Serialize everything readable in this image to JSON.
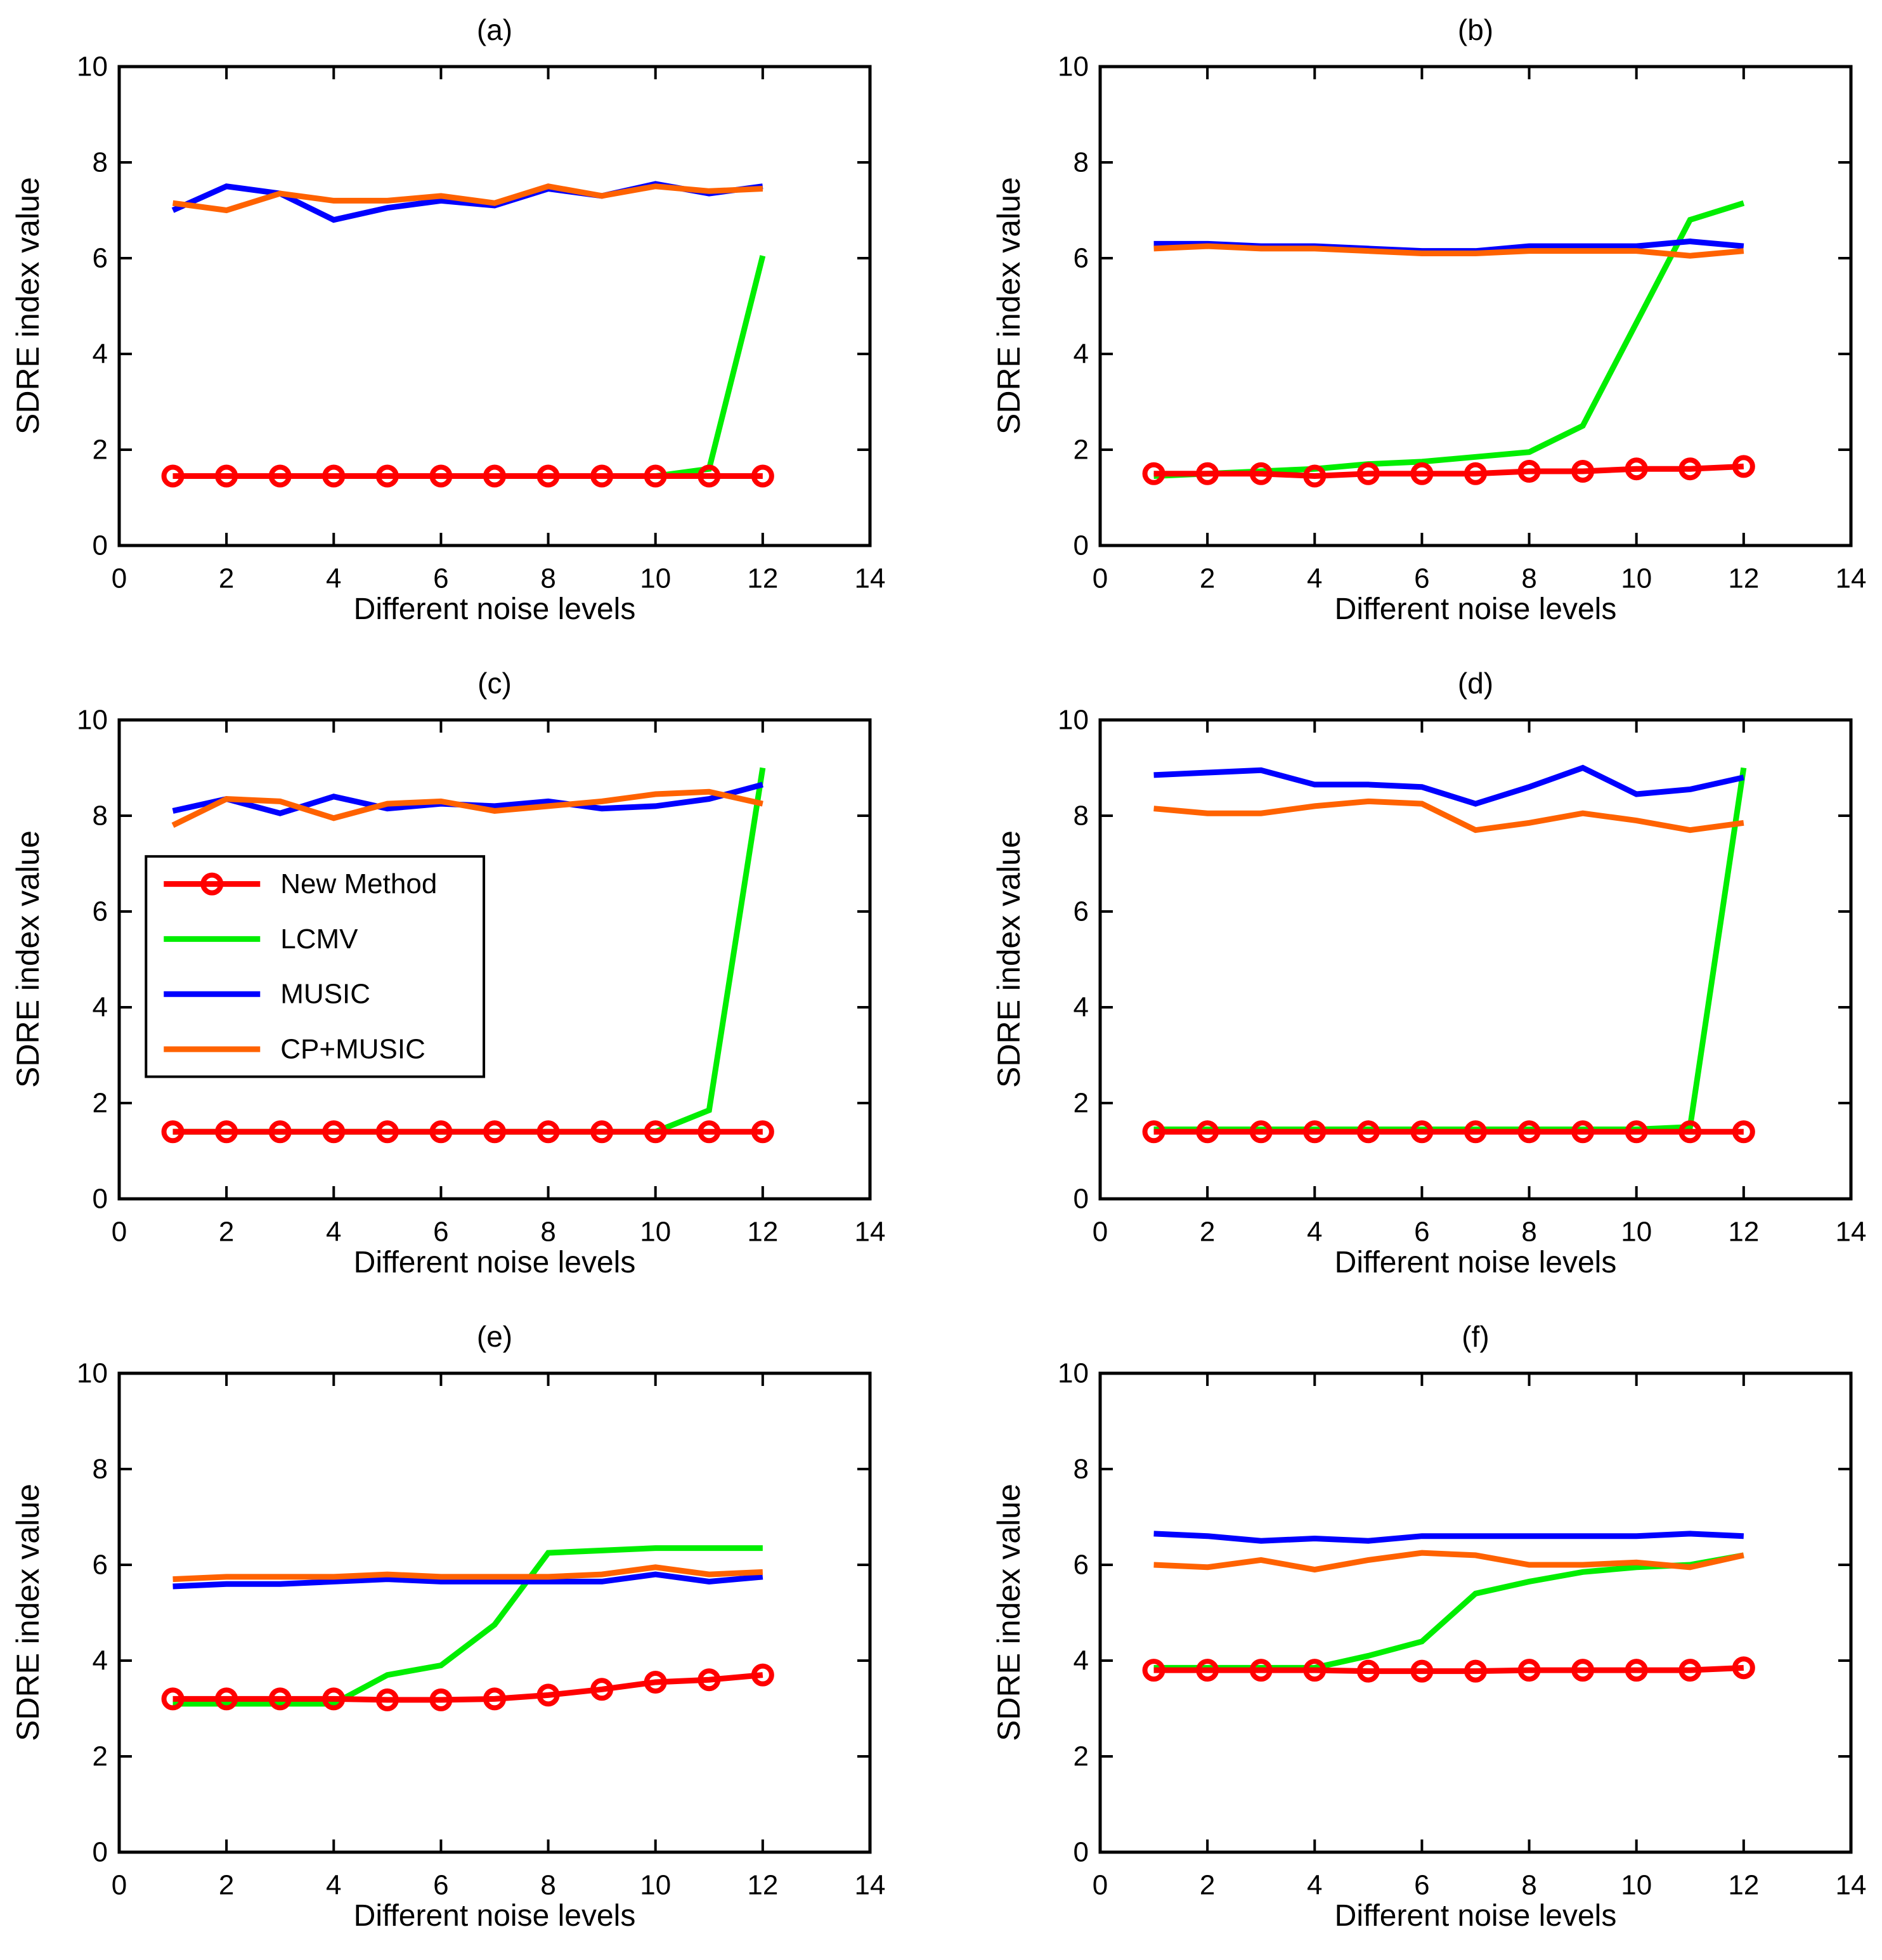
{
  "palette": {
    "red": "#ff0000",
    "green": "#00ee00",
    "blue": "#0000ff",
    "orange": "#ff6200",
    "axis_color": "#000000",
    "background": "#ffffff"
  },
  "chart_data": [
    {
      "id": "a",
      "type": "line",
      "title": "(a)",
      "xlabel": "Different noise levels",
      "ylabel": "SDRE index value",
      "xlim": [
        0,
        14
      ],
      "ylim": [
        0,
        10
      ],
      "xticks": [
        0,
        2,
        4,
        6,
        8,
        10,
        12,
        14
      ],
      "yticks": [
        0,
        2,
        4,
        6,
        8,
        10
      ],
      "grid": false,
      "x": [
        1,
        2,
        3,
        4,
        5,
        6,
        7,
        8,
        9,
        10,
        11,
        12
      ],
      "series": [
        {
          "name": "New Method",
          "color": "red",
          "marker": "circle",
          "values": [
            1.45,
            1.45,
            1.45,
            1.45,
            1.45,
            1.45,
            1.45,
            1.45,
            1.45,
            1.45,
            1.45,
            1.45
          ]
        },
        {
          "name": "LCMV",
          "color": "green",
          "marker": null,
          "values": [
            1.45,
            1.45,
            1.45,
            1.45,
            1.45,
            1.45,
            1.45,
            1.45,
            1.45,
            1.45,
            1.6,
            6.05
          ]
        },
        {
          "name": "MUSIC",
          "color": "blue",
          "marker": null,
          "values": [
            7.0,
            7.5,
            7.35,
            6.8,
            7.05,
            7.2,
            7.1,
            7.45,
            7.3,
            7.55,
            7.35,
            7.5
          ]
        },
        {
          "name": "CP+MUSIC",
          "color": "orange",
          "marker": null,
          "values": [
            7.15,
            7.0,
            7.35,
            7.2,
            7.2,
            7.3,
            7.15,
            7.5,
            7.3,
            7.5,
            7.4,
            7.45
          ]
        }
      ]
    },
    {
      "id": "b",
      "type": "line",
      "title": "(b)",
      "xlabel": "Different noise levels",
      "ylabel": "SDRE index value",
      "xlim": [
        0,
        14
      ],
      "ylim": [
        0,
        10
      ],
      "xticks": [
        0,
        2,
        4,
        6,
        8,
        10,
        12,
        14
      ],
      "yticks": [
        0,
        2,
        4,
        6,
        8,
        10
      ],
      "grid": false,
      "x": [
        1,
        2,
        3,
        4,
        5,
        6,
        7,
        8,
        9,
        10,
        11,
        12
      ],
      "series": [
        {
          "name": "New Method",
          "color": "red",
          "marker": "circle",
          "values": [
            1.5,
            1.5,
            1.5,
            1.45,
            1.5,
            1.5,
            1.5,
            1.55,
            1.55,
            1.6,
            1.6,
            1.65
          ]
        },
        {
          "name": "LCMV",
          "color": "green",
          "marker": null,
          "values": [
            1.45,
            1.5,
            1.55,
            1.6,
            1.7,
            1.75,
            1.85,
            1.95,
            2.5,
            4.65,
            6.8,
            7.15
          ]
        },
        {
          "name": "MUSIC",
          "color": "blue",
          "marker": null,
          "values": [
            6.3,
            6.3,
            6.25,
            6.25,
            6.2,
            6.15,
            6.15,
            6.25,
            6.25,
            6.25,
            6.35,
            6.25
          ]
        },
        {
          "name": "CP+MUSIC",
          "color": "orange",
          "marker": null,
          "values": [
            6.2,
            6.25,
            6.2,
            6.2,
            6.15,
            6.1,
            6.1,
            6.15,
            6.15,
            6.15,
            6.05,
            6.15
          ]
        }
      ]
    },
    {
      "id": "c",
      "type": "line",
      "title": "(c)",
      "xlabel": "Different noise levels",
      "ylabel": "SDRE index value",
      "xlim": [
        0,
        14
      ],
      "ylim": [
        0,
        10
      ],
      "xticks": [
        0,
        2,
        4,
        6,
        8,
        10,
        12,
        14
      ],
      "yticks": [
        0,
        2,
        4,
        6,
        8,
        10
      ],
      "grid": false,
      "x": [
        1,
        2,
        3,
        4,
        5,
        6,
        7,
        8,
        9,
        10,
        11,
        12
      ],
      "legend": {
        "visible": true,
        "position": "upper-left",
        "labels": [
          "New Method",
          "LCMV",
          "MUSIC",
          "CP+MUSIC"
        ],
        "box_data_coords": {
          "x0": 0.5,
          "x1": 6.8,
          "y0": 2.55,
          "y1": 7.15
        }
      },
      "series": [
        {
          "name": "New Method",
          "color": "red",
          "marker": "circle",
          "values": [
            1.4,
            1.4,
            1.4,
            1.4,
            1.4,
            1.4,
            1.4,
            1.4,
            1.4,
            1.4,
            1.4,
            1.4
          ]
        },
        {
          "name": "LCMV",
          "color": "green",
          "marker": null,
          "values": [
            1.4,
            1.4,
            1.4,
            1.4,
            1.4,
            1.4,
            1.4,
            1.4,
            1.4,
            1.4,
            1.85,
            9.0
          ]
        },
        {
          "name": "MUSIC",
          "color": "blue",
          "marker": null,
          "values": [
            8.1,
            8.35,
            8.05,
            8.4,
            8.15,
            8.25,
            8.2,
            8.3,
            8.15,
            8.2,
            8.35,
            8.65
          ]
        },
        {
          "name": "CP+MUSIC",
          "color": "orange",
          "marker": null,
          "values": [
            7.8,
            8.35,
            8.3,
            7.95,
            8.25,
            8.3,
            8.1,
            8.2,
            8.3,
            8.45,
            8.5,
            8.25
          ]
        }
      ]
    },
    {
      "id": "d",
      "type": "line",
      "title": "(d)",
      "xlabel": "Different noise levels",
      "ylabel": "SDRE index value",
      "xlim": [
        0,
        14
      ],
      "ylim": [
        0,
        10
      ],
      "xticks": [
        0,
        2,
        4,
        6,
        8,
        10,
        12,
        14
      ],
      "yticks": [
        0,
        2,
        4,
        6,
        8,
        10
      ],
      "grid": false,
      "x": [
        1,
        2,
        3,
        4,
        5,
        6,
        7,
        8,
        9,
        10,
        11,
        12
      ],
      "series": [
        {
          "name": "New Method",
          "color": "red",
          "marker": "circle",
          "values": [
            1.4,
            1.4,
            1.4,
            1.4,
            1.4,
            1.4,
            1.4,
            1.4,
            1.4,
            1.4,
            1.4,
            1.4
          ]
        },
        {
          "name": "LCMV",
          "color": "green",
          "marker": null,
          "values": [
            1.45,
            1.45,
            1.45,
            1.45,
            1.45,
            1.45,
            1.45,
            1.45,
            1.45,
            1.45,
            1.5,
            9.0
          ]
        },
        {
          "name": "MUSIC",
          "color": "blue",
          "marker": null,
          "values": [
            8.85,
            8.9,
            8.95,
            8.65,
            8.65,
            8.6,
            8.25,
            8.6,
            9.0,
            8.45,
            8.55,
            8.8
          ]
        },
        {
          "name": "CP+MUSIC",
          "color": "orange",
          "marker": null,
          "values": [
            8.15,
            8.05,
            8.05,
            8.2,
            8.3,
            8.25,
            7.7,
            7.85,
            8.05,
            7.9,
            7.7,
            7.85
          ]
        }
      ]
    },
    {
      "id": "e",
      "type": "line",
      "title": "(e)",
      "xlabel": "Different noise levels",
      "ylabel": "SDRE index value",
      "xlim": [
        0,
        14
      ],
      "ylim": [
        0,
        10
      ],
      "xticks": [
        0,
        2,
        4,
        6,
        8,
        10,
        12,
        14
      ],
      "yticks": [
        0,
        2,
        4,
        6,
        8,
        10
      ],
      "grid": false,
      "x": [
        1,
        2,
        3,
        4,
        5,
        6,
        7,
        8,
        9,
        10,
        11,
        12
      ],
      "series": [
        {
          "name": "New Method",
          "color": "red",
          "marker": "circle",
          "values": [
            3.2,
            3.2,
            3.2,
            3.2,
            3.18,
            3.18,
            3.2,
            3.28,
            3.4,
            3.55,
            3.6,
            3.7
          ]
        },
        {
          "name": "LCMV",
          "color": "green",
          "marker": null,
          "values": [
            3.1,
            3.1,
            3.1,
            3.1,
            3.7,
            3.9,
            4.75,
            6.25,
            6.3,
            6.35,
            6.35,
            6.35
          ]
        },
        {
          "name": "MUSIC",
          "color": "blue",
          "marker": null,
          "values": [
            5.55,
            5.6,
            5.6,
            5.65,
            5.7,
            5.65,
            5.65,
            5.65,
            5.65,
            5.8,
            5.65,
            5.75
          ]
        },
        {
          "name": "CP+MUSIC",
          "color": "orange",
          "marker": null,
          "values": [
            5.7,
            5.75,
            5.75,
            5.75,
            5.8,
            5.75,
            5.75,
            5.75,
            5.8,
            5.95,
            5.8,
            5.85
          ]
        }
      ]
    },
    {
      "id": "f",
      "type": "line",
      "title": "(f)",
      "xlabel": "Different noise levels",
      "ylabel": "SDRE index value",
      "xlim": [
        0,
        14
      ],
      "ylim": [
        0,
        10
      ],
      "xticks": [
        0,
        2,
        4,
        6,
        8,
        10,
        12,
        14
      ],
      "yticks": [
        0,
        2,
        4,
        6,
        8,
        10
      ],
      "grid": false,
      "x": [
        1,
        2,
        3,
        4,
        5,
        6,
        7,
        8,
        9,
        10,
        11,
        12
      ],
      "series": [
        {
          "name": "New Method",
          "color": "red",
          "marker": "circle",
          "values": [
            3.8,
            3.8,
            3.8,
            3.8,
            3.78,
            3.78,
            3.78,
            3.8,
            3.8,
            3.8,
            3.8,
            3.85
          ]
        },
        {
          "name": "LCMV",
          "color": "green",
          "marker": null,
          "values": [
            3.85,
            3.85,
            3.85,
            3.85,
            4.1,
            4.4,
            5.4,
            5.65,
            5.85,
            5.95,
            6.0,
            6.2
          ]
        },
        {
          "name": "MUSIC",
          "color": "blue",
          "marker": null,
          "values": [
            6.65,
            6.6,
            6.5,
            6.55,
            6.5,
            6.6,
            6.6,
            6.6,
            6.6,
            6.6,
            6.65,
            6.6
          ]
        },
        {
          "name": "CP+MUSIC",
          "color": "orange",
          "marker": null,
          "values": [
            6.0,
            5.95,
            6.1,
            5.9,
            6.1,
            6.25,
            6.2,
            6.0,
            6.0,
            6.05,
            5.95,
            6.2
          ]
        }
      ]
    }
  ]
}
